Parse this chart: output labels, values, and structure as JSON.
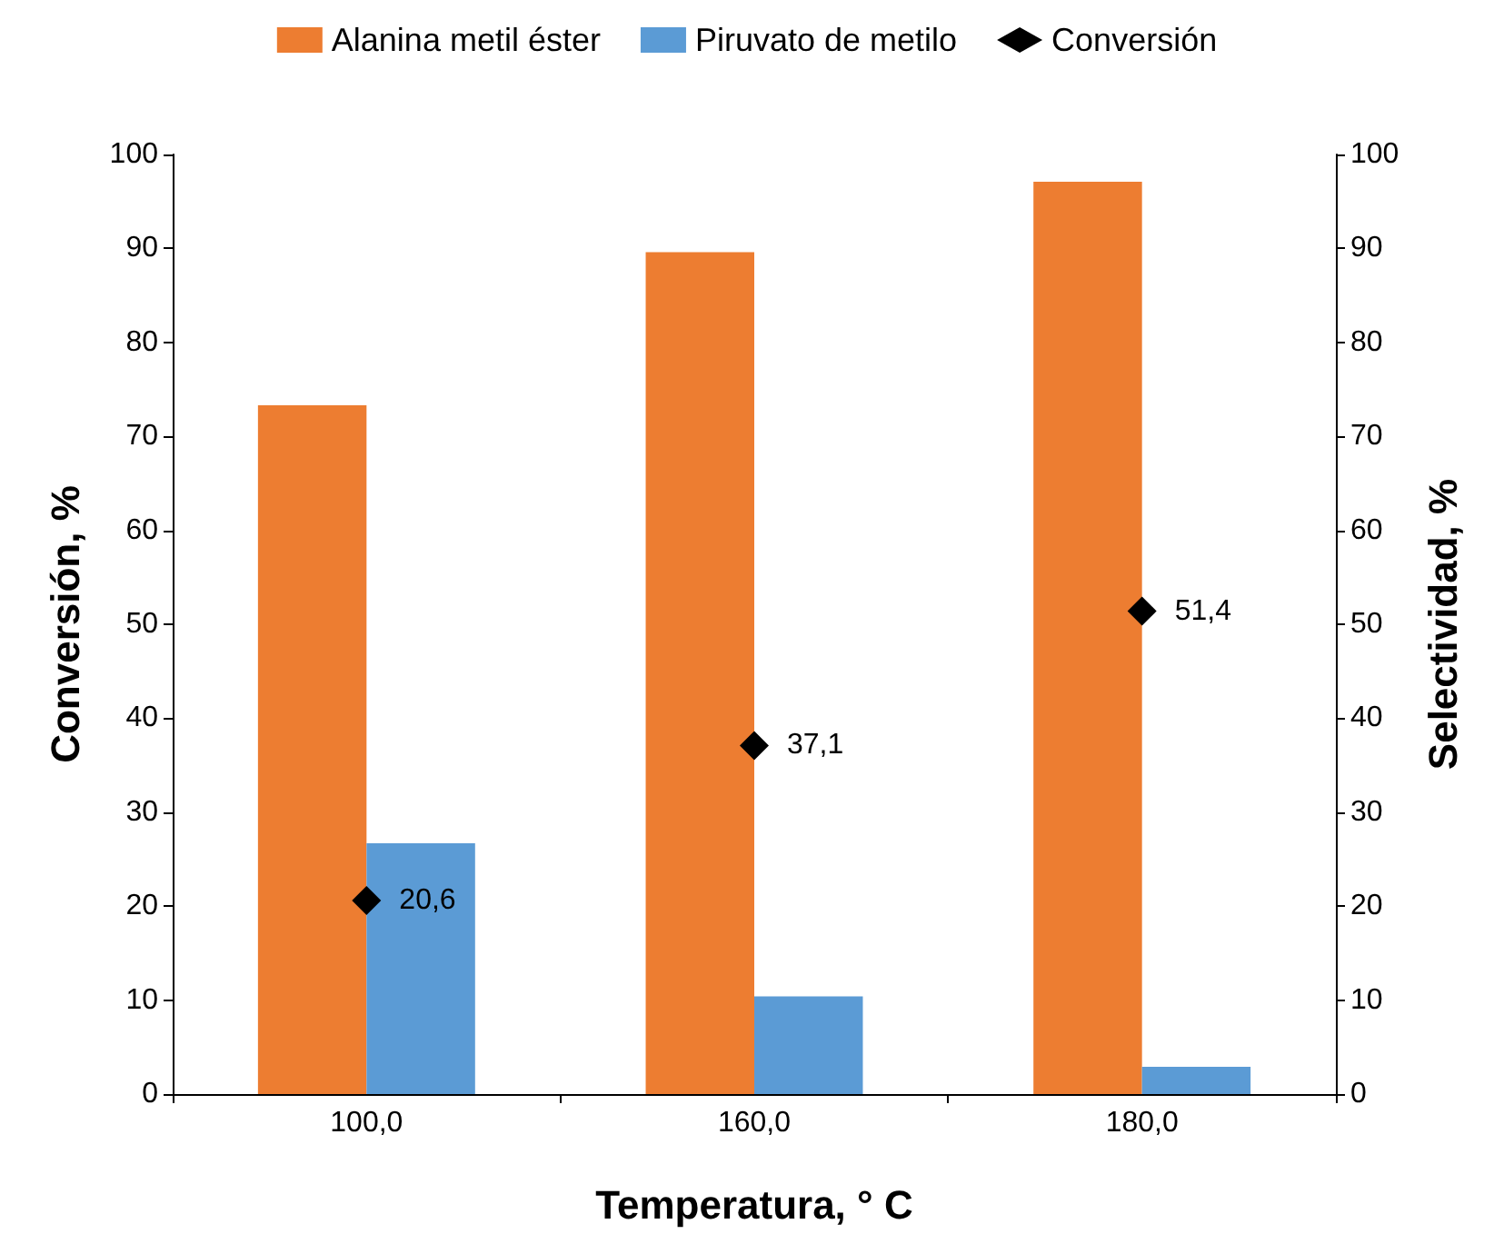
{
  "chart_data": {
    "type": "bar",
    "xlabel": "Temperatura, ° C",
    "ylabel": "Conversión, %",
    "y2label": "Selectividad, %",
    "categories": [
      "100,0",
      "160,0",
      "180,0"
    ],
    "series": [
      {
        "name": "Alanina metil éster",
        "color": "#ed7d31",
        "values": [
          73.3,
          89.6,
          97.1
        ]
      },
      {
        "name": "Piruvato de metilo",
        "color": "#5b9bd5",
        "values": [
          26.7,
          10.4,
          2.9
        ]
      },
      {
        "name": "Conversión",
        "type": "scatter",
        "color": "#000000",
        "marker": "diamond",
        "values": [
          20.6,
          37.1,
          51.4
        ],
        "value_labels": [
          "20,6",
          "37,1",
          "51,4"
        ]
      }
    ],
    "ylim": [
      0,
      100
    ],
    "yticks": [
      0,
      10,
      20,
      30,
      40,
      50,
      60,
      70,
      80,
      90,
      100
    ],
    "y2lim": [
      0,
      100
    ],
    "y2ticks": [
      0,
      10,
      20,
      30,
      40,
      50,
      60,
      70,
      80,
      90,
      100
    ],
    "grid": false,
    "legend": "top"
  }
}
